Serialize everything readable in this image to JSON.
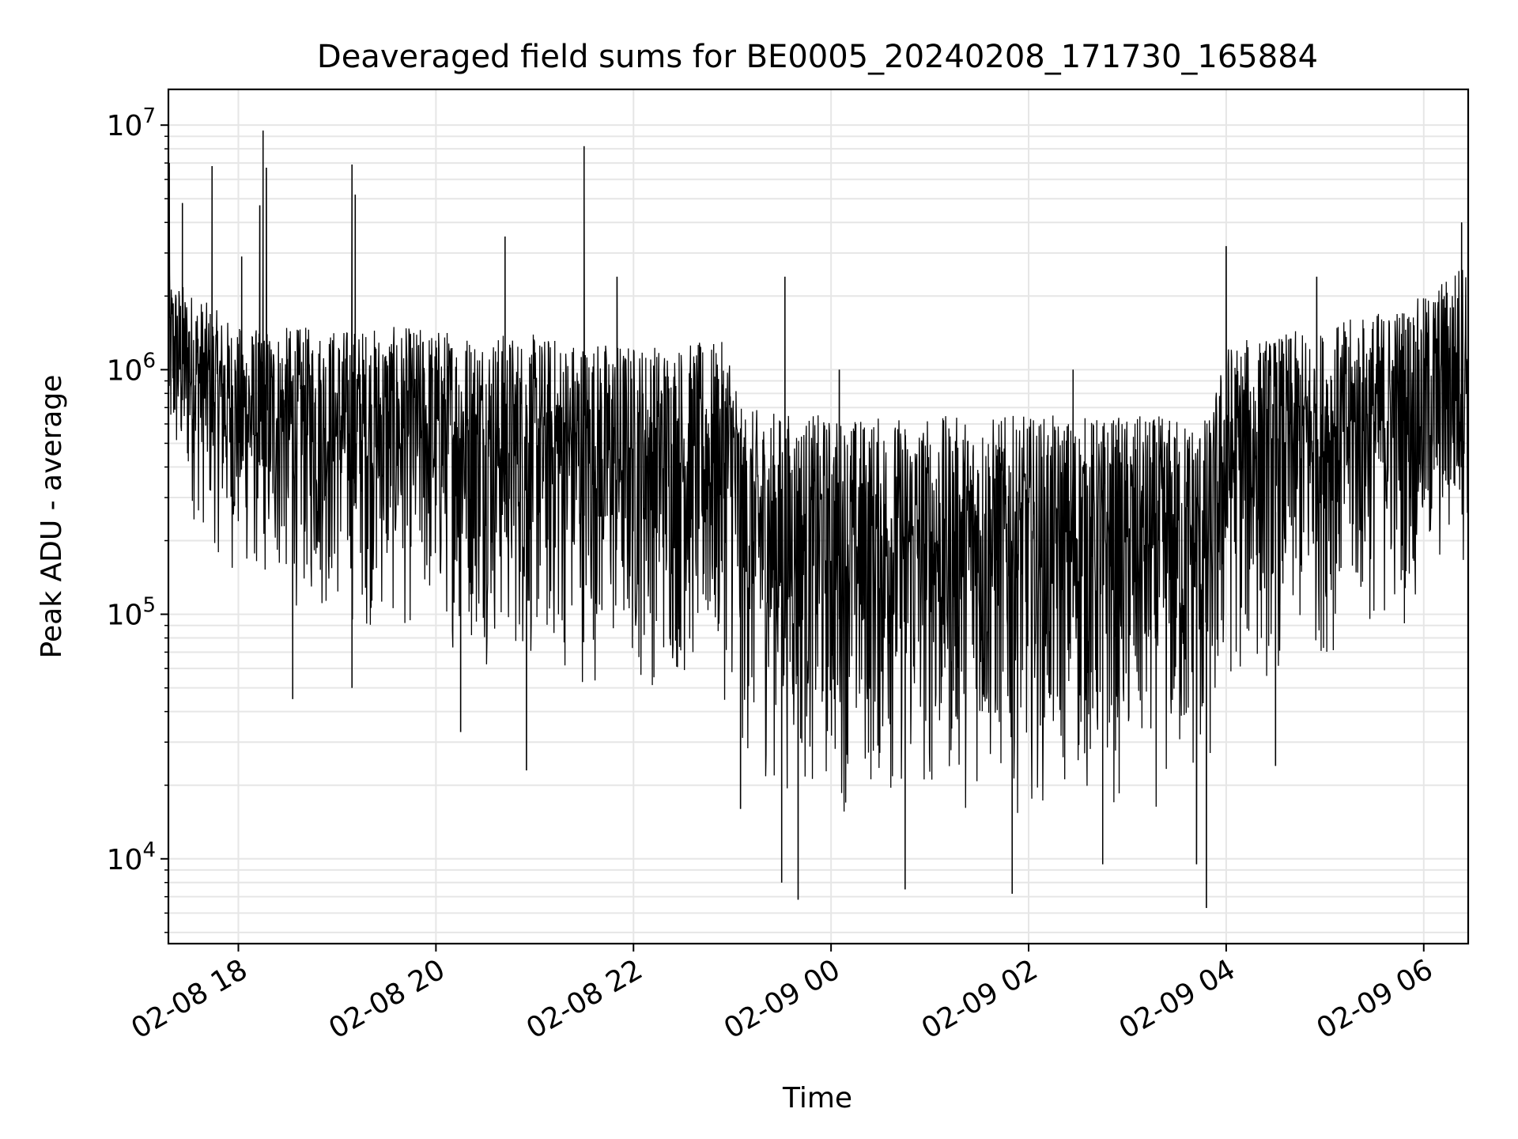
{
  "chart_data": {
    "type": "line",
    "title": "Deaveraged field sums for BE0005_20240208_171730_165884",
    "xlabel": "Time",
    "ylabel": "Peak ADU - average",
    "yscale": "log",
    "ylim": [
      4500,
      14000000
    ],
    "xlim": [
      "2024-02-08 17:17:30",
      "2024-02-09 06:27:00"
    ],
    "grid": true,
    "line_color": "#000000",
    "x_ticks": [
      {
        "value": "2024-02-08 18:00",
        "label": "02-08 18"
      },
      {
        "value": "2024-02-08 20:00",
        "label": "02-08 20"
      },
      {
        "value": "2024-02-08 22:00",
        "label": "02-08 22"
      },
      {
        "value": "2024-02-09 00:00",
        "label": "02-09 00"
      },
      {
        "value": "2024-02-09 02:00",
        "label": "02-09 02"
      },
      {
        "value": "2024-02-09 04:00",
        "label": "02-09 04"
      },
      {
        "value": "2024-02-09 06:00",
        "label": "02-09 06"
      }
    ],
    "y_ticks": [
      {
        "value": 10000,
        "base": "10",
        "exp": "4"
      },
      {
        "value": 100000,
        "base": "10",
        "exp": "5"
      },
      {
        "value": 1000000,
        "base": "10",
        "exp": "6"
      },
      {
        "value": 10000000,
        "base": "10",
        "exp": "7"
      }
    ],
    "series": [
      {
        "envelope": {
          "x": [
            "2024-02-08 17:17:30",
            "2024-02-08 18:00",
            "2024-02-08 19:00",
            "2024-02-08 20:00",
            "2024-02-08 21:00",
            "2024-02-08 22:00",
            "2024-02-08 23:00",
            "2024-02-08 23:05",
            "2024-02-09 00:00",
            "2024-02-09 01:00",
            "2024-02-09 02:00",
            "2024-02-09 03:00",
            "2024-02-09 03:50",
            "2024-02-09 04:00",
            "2024-02-09 05:00",
            "2024-02-09 06:00",
            "2024-02-09 06:27"
          ],
          "upper": [
            2500000,
            1500000,
            1500000,
            1500000,
            1400000,
            1300000,
            1300000,
            700000,
            650000,
            650000,
            650000,
            650000,
            650000,
            1300000,
            1500000,
            2000000,
            3000000
          ],
          "lower": [
            300000,
            120000,
            80000,
            70000,
            50000,
            45000,
            40000,
            20000,
            14000,
            14000,
            15000,
            14000,
            14000,
            40000,
            60000,
            90000,
            150000
          ]
        },
        "spikes": [
          {
            "x": "2024-02-08 17:18",
            "y": 7000000
          },
          {
            "x": "2024-02-08 17:26",
            "y": 4800000
          },
          {
            "x": "2024-02-08 17:44",
            "y": 6800000
          },
          {
            "x": "2024-02-08 18:02",
            "y": 2900000
          },
          {
            "x": "2024-02-08 18:15",
            "y": 9500000
          },
          {
            "x": "2024-02-08 18:17",
            "y": 6700000
          },
          {
            "x": "2024-02-08 18:13",
            "y": 4700000
          },
          {
            "x": "2024-02-08 18:33",
            "y": 45000
          },
          {
            "x": "2024-02-08 19:09",
            "y": 6900000
          },
          {
            "x": "2024-02-08 19:11",
            "y": 5200000
          },
          {
            "x": "2024-02-08 19:09",
            "y": 50000
          },
          {
            "x": "2024-02-08 20:15",
            "y": 33000
          },
          {
            "x": "2024-02-08 20:42",
            "y": 3500000
          },
          {
            "x": "2024-02-08 20:55",
            "y": 23000
          },
          {
            "x": "2024-02-08 21:30",
            "y": 8200000
          },
          {
            "x": "2024-02-08 21:50",
            "y": 2400000
          },
          {
            "x": "2024-02-08 23:05",
            "y": 16000
          },
          {
            "x": "2024-02-08 23:30",
            "y": 8000
          },
          {
            "x": "2024-02-08 23:32",
            "y": 2400000
          },
          {
            "x": "2024-02-08 23:40",
            "y": 6800
          },
          {
            "x": "2024-02-09 00:05",
            "y": 1000000
          },
          {
            "x": "2024-02-09 00:45",
            "y": 7500
          },
          {
            "x": "2024-02-09 01:50",
            "y": 7200
          },
          {
            "x": "2024-02-09 02:45",
            "y": 9500
          },
          {
            "x": "2024-02-09 02:27",
            "y": 1000000
          },
          {
            "x": "2024-02-09 03:42",
            "y": 9500
          },
          {
            "x": "2024-02-09 03:48",
            "y": 6300
          },
          {
            "x": "2024-02-09 04:00",
            "y": 3200000
          },
          {
            "x": "2024-02-09 04:30",
            "y": 24000
          },
          {
            "x": "2024-02-09 04:55",
            "y": 2400000
          },
          {
            "x": "2024-02-09 06:23",
            "y": 4000000
          }
        ]
      }
    ]
  }
}
